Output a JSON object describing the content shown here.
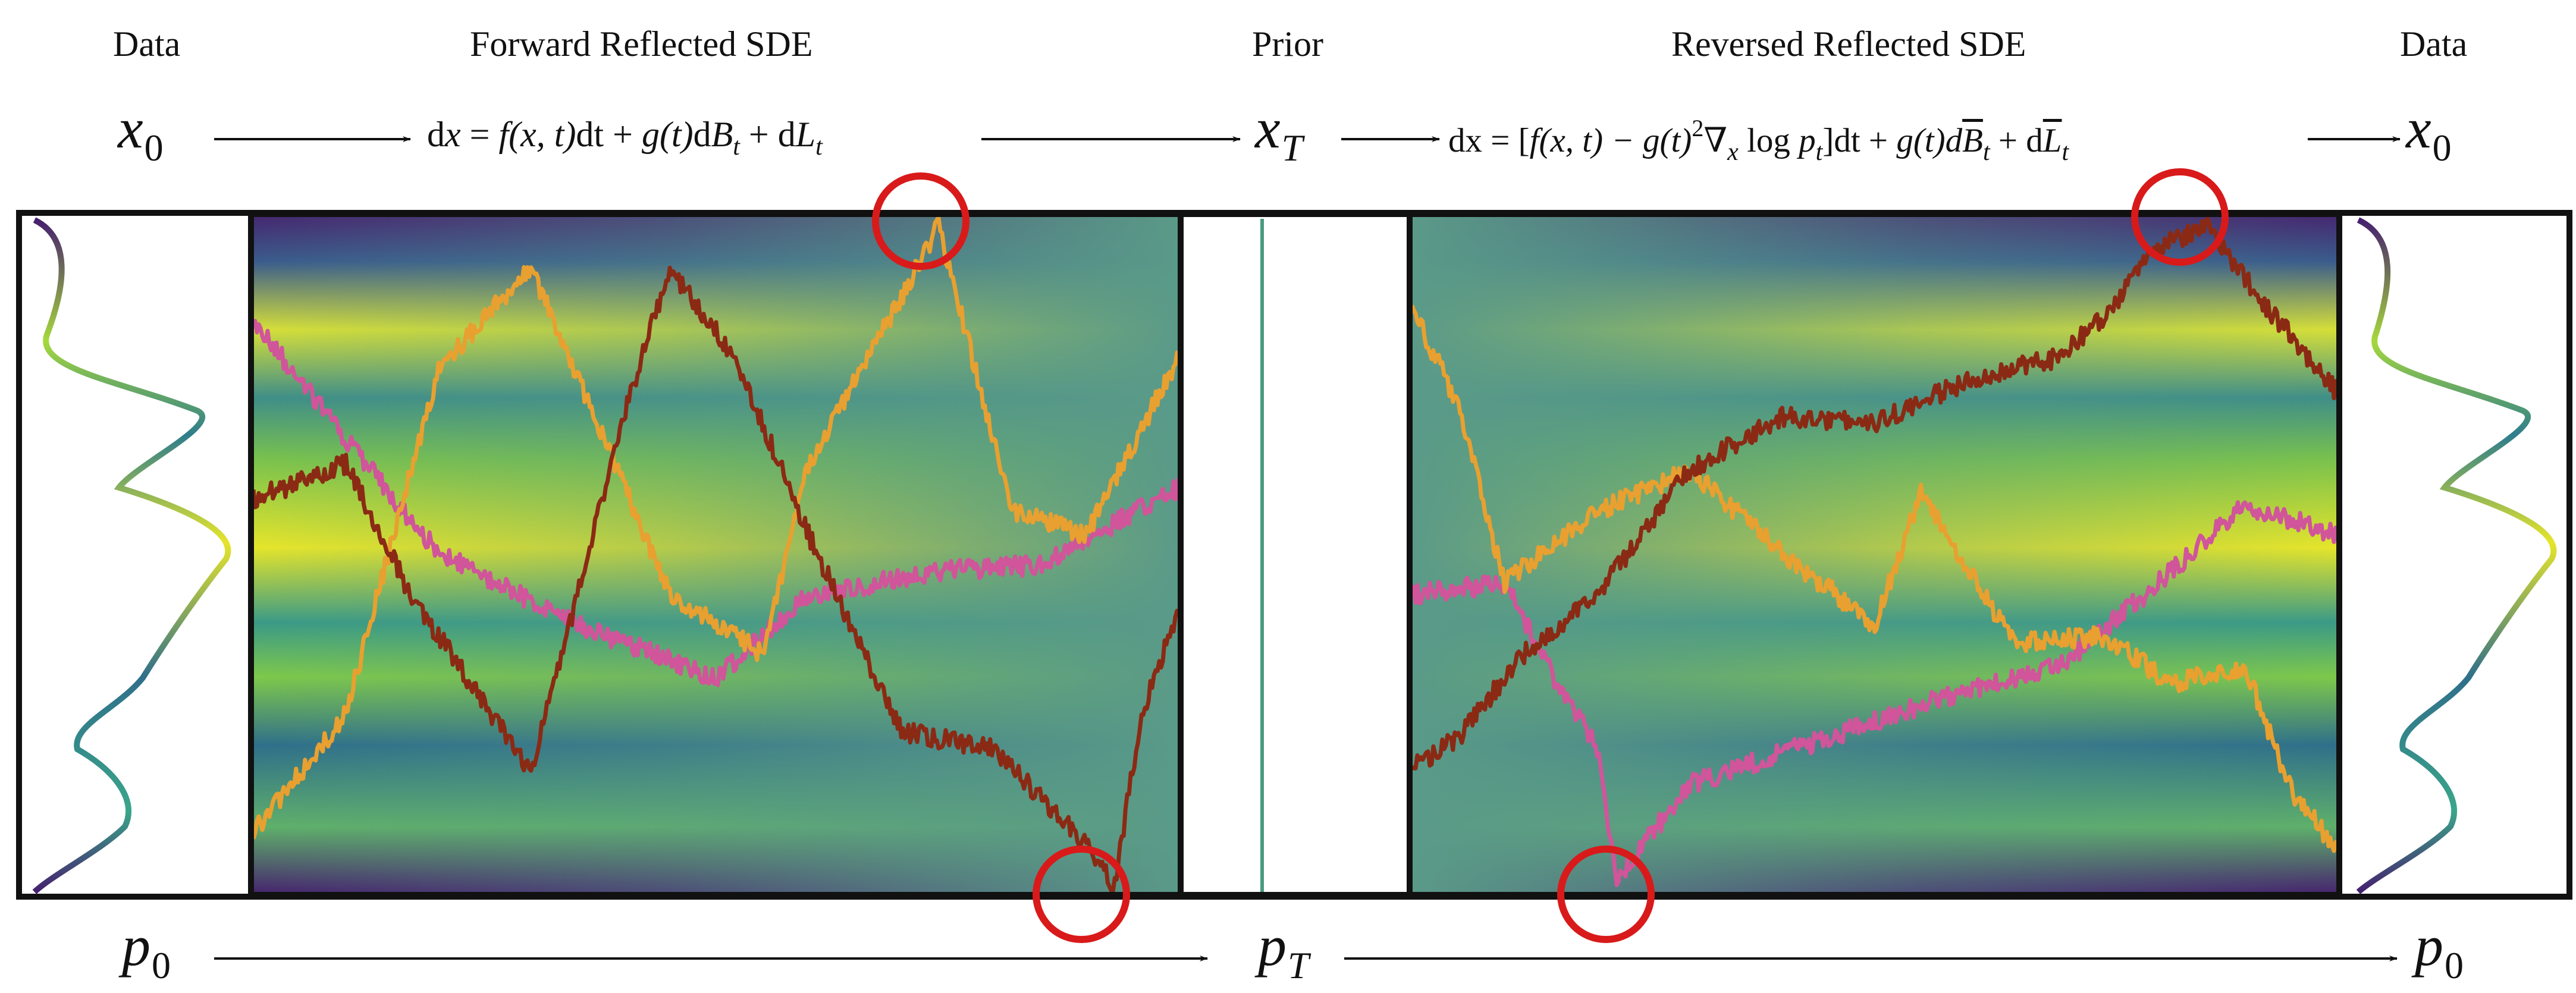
{
  "headers": {
    "data_left": "Data",
    "forward": "Forward Reflected SDE",
    "prior": "Prior",
    "reversed": "Reversed Reflected SDE",
    "data_right": "Data"
  },
  "top_row": {
    "x0_left_base": "x",
    "x0_left_sub": "0",
    "forward_eq": {
      "d": "d",
      "x": "x",
      "eq": " = ",
      "f": "f",
      "args": "(x, t)",
      "dt": "dt + ",
      "g": "g",
      "gt": "(t)",
      "dB": "d",
      "B": "B",
      "Bsub": "t",
      "plus": " + d",
      "L": "L",
      "Lsub": "t"
    },
    "xT_base": "x",
    "xT_sub": "T",
    "reverse_eq": {
      "lead": "dx = [",
      "f": "f",
      "args": "(x, t) − ",
      "g": "g",
      "gt": "(t)",
      "sq": "2",
      "nabla": "∇",
      "nsub": "x",
      "log": " log ",
      "p": "p",
      "psub": "t",
      "close": "]dt + ",
      "g2": "g",
      "gt2": "(t)d",
      "B": "B",
      "Bsub": "t",
      "plus": " + d",
      "L": "L",
      "Lsub": "t"
    },
    "x0_right_base": "x",
    "x0_right_sub": "0"
  },
  "bottom_row": {
    "p0_left_base": "p",
    "p0_left_sub": "0",
    "pT_base": "p",
    "pT_sub": "T",
    "p0_right_base": "p",
    "p0_right_sub": "0"
  },
  "colors": {
    "path_dark_red": "#8b2a14",
    "path_orange": "#e8a030",
    "path_pink": "#d0559a",
    "highlight_circle": "#d91a1a",
    "prior_line": "#4a9a80",
    "viridis_dark": "#45206e",
    "viridis_teal": "#2f8c8a",
    "viridis_green": "#79c24d",
    "viridis_yellow": "#e6e52a"
  }
}
